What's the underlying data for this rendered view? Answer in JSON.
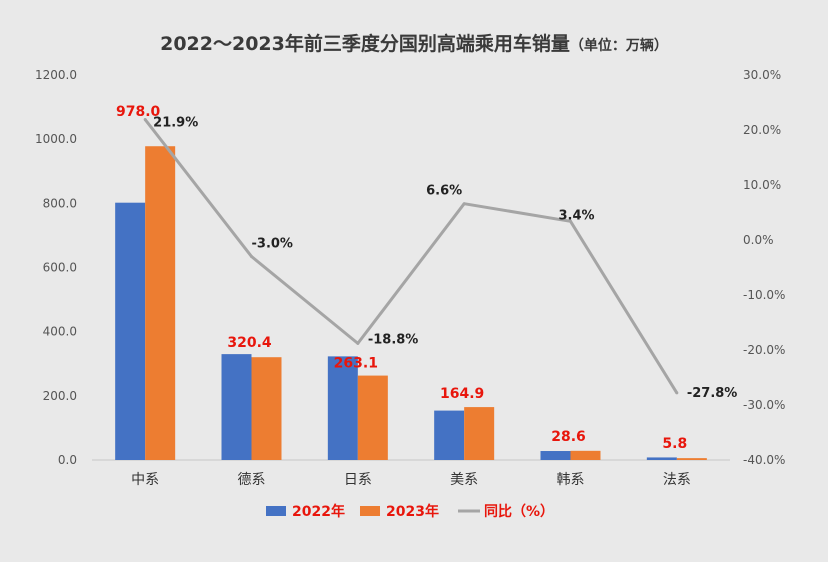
{
  "title": "2022～2023年前三季度分国别高端乘用车销量",
  "title_unit": "（单位：万辆）",
  "chart_data": {
    "type": "bar",
    "categories": [
      "中系",
      "德系",
      "日系",
      "美系",
      "韩系",
      "法系"
    ],
    "series": [
      {
        "name": "2022年",
        "type": "bar",
        "axis": "left",
        "color": "#4472c4",
        "values": [
          802,
          330,
          323,
          154,
          28,
          8
        ]
      },
      {
        "name": "2023年",
        "type": "bar",
        "axis": "left",
        "color": "#ed7d31",
        "values": [
          978.0,
          320.4,
          263.1,
          164.9,
          28.6,
          5.8
        ]
      },
      {
        "name": "同比（%）",
        "type": "line",
        "axis": "right",
        "color": "#a5a5a5",
        "values": [
          21.9,
          -3.0,
          -18.8,
          6.6,
          3.4,
          -27.8
        ]
      }
    ],
    "data_labels_2023": [
      "978.0",
      "320.4",
      "263.1",
      "164.9",
      "28.6",
      "5.8"
    ],
    "data_labels_pct": [
      "21.9%",
      "-3.0%",
      "-18.8%",
      "6.6%",
      "3.4%",
      "-27.8%"
    ],
    "ylim_left": [
      0,
      1200
    ],
    "ylim_right": [
      -40,
      30
    ],
    "left_ticks": [
      "0.0",
      "200.0",
      "400.0",
      "600.0",
      "800.0",
      "1000.0",
      "1200.0"
    ],
    "right_ticks": [
      "-40.0%",
      "-30.0%",
      "-20.0%",
      "-10.0%",
      "0.0%",
      "10.0%",
      "20.0%",
      "30.0%"
    ],
    "legend": [
      "2022年",
      "2023年",
      "同比（%）"
    ],
    "legend_position": "bottom",
    "grid": false
  }
}
